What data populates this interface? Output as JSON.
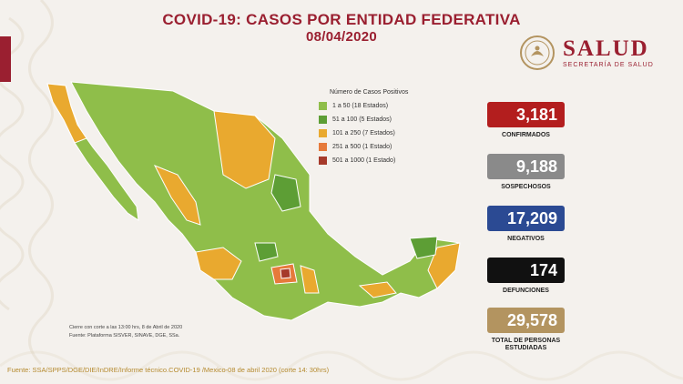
{
  "title": "COVID-19: CASOS POR ENTIDAD FEDERATIVA",
  "date": "08/04/2020",
  "logo": {
    "name": "SALUD",
    "subtitle": "SECRETARÍA DE SALUD"
  },
  "legend": {
    "title": "Número de Casos Positivos",
    "items": [
      {
        "range": "1  a    50  (18 Estados)",
        "color": "#8fbe4a"
      },
      {
        "range": "51  a   100   (5 Estados)",
        "color": "#5d9e35"
      },
      {
        "range": "101  a   250   (7 Estados)",
        "color": "#e9a92f"
      },
      {
        "range": "251  a   500   (1 Estado)",
        "color": "#e67a3b"
      },
      {
        "range": "501  a  1000   (1 Estado)",
        "color": "#a63a2b"
      }
    ]
  },
  "stats": [
    {
      "value": "3,181",
      "label": "CONFIRMADOS",
      "color": "#b31e1e"
    },
    {
      "value": "9,188",
      "label": "SOSPECHOSOS",
      "color": "#8a8a8a"
    },
    {
      "value": "17,209",
      "label": "NEGATIVOS",
      "color": "#2b4a93"
    },
    {
      "value": "174",
      "label": "DEFUNCIONES",
      "color": "#111111"
    },
    {
      "value": "29,578",
      "label": "TOTAL DE PERSONAS ESTUDIADAS",
      "color": "#b39460"
    }
  ],
  "notes": {
    "cierre": "Cierre con corte a las 13:00 hrs, 8 de Abril de 2020",
    "fuente": "Fuente: Plataforma SISVER, SINAVE, DGE, SSa."
  },
  "source": "Fuente: SSA/SPPS/DGE/DIE/InDRE/Informe técnico.COVID-19 /Mexico-08 de abril 2020 (corte 14: 30hrs)"
}
